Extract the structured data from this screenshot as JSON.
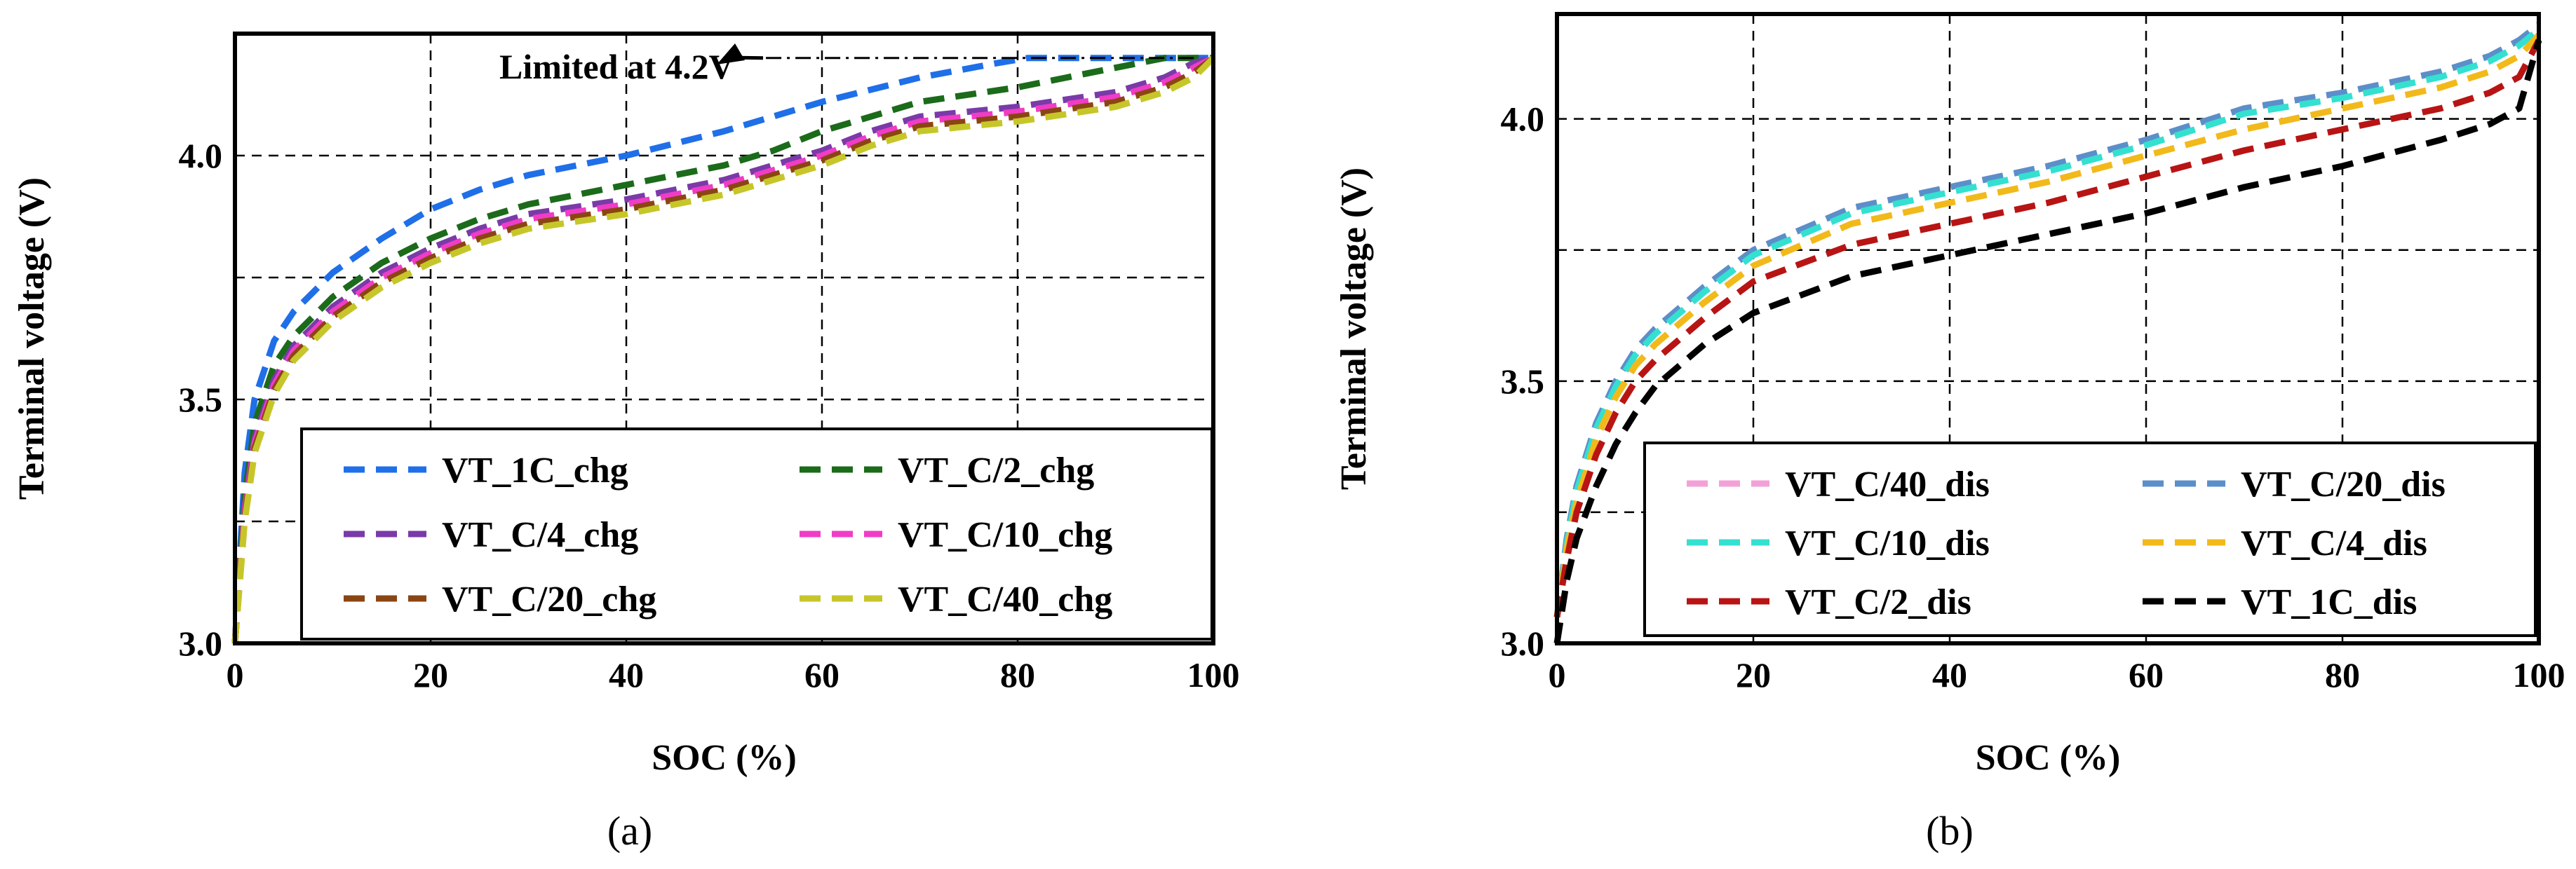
{
  "figure": {
    "captions": [
      "(a)",
      "(b)"
    ]
  },
  "chart_data": [
    {
      "type": "line",
      "panel": "a",
      "title": "",
      "xlabel": "SOC (%)",
      "ylabel": "Terminal voltage (V)",
      "xlim": [
        0,
        100
      ],
      "ylim": [
        3.0,
        4.25
      ],
      "xticks": [
        "0",
        "20",
        "40",
        "60",
        "80",
        "100"
      ],
      "yticks": [
        "3.0",
        "3.5",
        "4.0"
      ],
      "grid": true,
      "legend_position": "bottom-right",
      "legend_columns": 2,
      "annotation": {
        "text": "Limited at 4.2V",
        "x": 98,
        "y": 4.2
      },
      "series": [
        {
          "name": "VT_1C_chg",
          "color": "#1f6fe8",
          "x": [
            0,
            1,
            2,
            4,
            6,
            8,
            10,
            15,
            20,
            25,
            30,
            40,
            50,
            60,
            70,
            78,
            81,
            85,
            90,
            95,
            100
          ],
          "y": [
            3.0,
            3.35,
            3.5,
            3.62,
            3.68,
            3.72,
            3.76,
            3.83,
            3.89,
            3.93,
            3.96,
            4.0,
            4.05,
            4.11,
            4.16,
            4.19,
            4.2,
            4.2,
            4.2,
            4.2,
            4.2
          ]
        },
        {
          "name": "VT_C/2_chg",
          "color": "#1b6b1b",
          "x": [
            0,
            1,
            2,
            4,
            6,
            8,
            10,
            15,
            20,
            25,
            30,
            40,
            50,
            55,
            60,
            65,
            70,
            80,
            85,
            90,
            95,
            100
          ],
          "y": [
            3.0,
            3.3,
            3.45,
            3.57,
            3.63,
            3.67,
            3.71,
            3.78,
            3.83,
            3.87,
            3.9,
            3.94,
            3.98,
            4.01,
            4.05,
            4.08,
            4.11,
            4.14,
            4.16,
            4.18,
            4.2,
            4.2
          ]
        },
        {
          "name": "VT_C/4_chg",
          "color": "#7a3aa8",
          "x": [
            0,
            1,
            2,
            4,
            6,
            8,
            10,
            15,
            20,
            25,
            30,
            40,
            50,
            55,
            60,
            65,
            70,
            80,
            90,
            95,
            98,
            100
          ],
          "y": [
            3.0,
            3.28,
            3.42,
            3.54,
            3.61,
            3.65,
            3.69,
            3.76,
            3.81,
            3.85,
            3.88,
            3.91,
            3.95,
            3.98,
            4.01,
            4.05,
            4.08,
            4.1,
            4.13,
            4.16,
            4.19,
            4.2
          ]
        },
        {
          "name": "VT_C/10_chg",
          "color": "#f03cc6",
          "x": [
            0,
            1,
            2,
            4,
            6,
            8,
            10,
            15,
            20,
            25,
            30,
            40,
            50,
            55,
            60,
            65,
            70,
            80,
            90,
            95,
            98,
            100
          ],
          "y": [
            3.0,
            3.27,
            3.41,
            3.53,
            3.6,
            3.64,
            3.68,
            3.75,
            3.8,
            3.84,
            3.87,
            3.9,
            3.94,
            3.97,
            4.0,
            4.04,
            4.07,
            4.09,
            4.12,
            4.15,
            4.18,
            4.2
          ]
        },
        {
          "name": "VT_C/20_chg",
          "color": "#8b4513",
          "x": [
            0,
            1,
            2,
            4,
            6,
            8,
            10,
            15,
            20,
            25,
            30,
            40,
            50,
            55,
            60,
            65,
            70,
            80,
            90,
            95,
            98,
            100
          ],
          "y": [
            3.0,
            3.26,
            3.4,
            3.52,
            3.59,
            3.63,
            3.67,
            3.74,
            3.79,
            3.83,
            3.86,
            3.89,
            3.93,
            3.96,
            3.99,
            4.03,
            4.06,
            4.08,
            4.11,
            4.14,
            4.17,
            4.2
          ]
        },
        {
          "name": "VT_C/40_chg",
          "color": "#c6c62a",
          "x": [
            0,
            1,
            2,
            4,
            6,
            8,
            10,
            15,
            20,
            25,
            30,
            40,
            50,
            55,
            60,
            65,
            70,
            80,
            90,
            95,
            98,
            100
          ],
          "y": [
            3.0,
            3.25,
            3.39,
            3.51,
            3.58,
            3.62,
            3.66,
            3.73,
            3.78,
            3.82,
            3.85,
            3.88,
            3.92,
            3.95,
            3.98,
            4.02,
            4.05,
            4.07,
            4.1,
            4.13,
            4.16,
            4.2
          ]
        }
      ]
    },
    {
      "type": "line",
      "panel": "b",
      "title": "",
      "xlabel": "SOC (%)",
      "ylabel": "Terminal voltage (V)",
      "xlim": [
        0,
        100
      ],
      "ylim": [
        3.0,
        4.2
      ],
      "xticks": [
        "0",
        "20",
        "40",
        "60",
        "80",
        "100"
      ],
      "yticks": [
        "3.0",
        "3.5",
        "4.0"
      ],
      "grid": true,
      "legend_position": "bottom-right",
      "legend_columns": 2,
      "series": [
        {
          "name": "VT_C/40_dis",
          "color": "#f4a0d8",
          "x": [
            0,
            1,
            2,
            4,
            6,
            8,
            10,
            15,
            20,
            30,
            40,
            50,
            60,
            70,
            80,
            90,
            95,
            98,
            100
          ],
          "y": [
            3.05,
            3.2,
            3.3,
            3.42,
            3.5,
            3.56,
            3.6,
            3.68,
            3.75,
            3.83,
            3.87,
            3.91,
            3.96,
            4.02,
            4.05,
            4.09,
            4.12,
            4.15,
            4.18
          ]
        },
        {
          "name": "VT_C/20_dis",
          "color": "#5b8fc9",
          "x": [
            0,
            1,
            2,
            4,
            6,
            8,
            10,
            15,
            20,
            30,
            40,
            50,
            60,
            70,
            80,
            90,
            95,
            98,
            100
          ],
          "y": [
            3.05,
            3.2,
            3.3,
            3.42,
            3.5,
            3.56,
            3.6,
            3.68,
            3.75,
            3.83,
            3.87,
            3.91,
            3.96,
            4.02,
            4.05,
            4.09,
            4.12,
            4.15,
            4.18
          ]
        },
        {
          "name": "VT_C/10_dis",
          "color": "#34e0d0",
          "x": [
            0,
            1,
            2,
            4,
            6,
            8,
            10,
            15,
            20,
            30,
            40,
            50,
            60,
            70,
            80,
            90,
            95,
            98,
            100
          ],
          "y": [
            3.05,
            3.19,
            3.29,
            3.41,
            3.49,
            3.55,
            3.59,
            3.67,
            3.74,
            3.82,
            3.86,
            3.9,
            3.95,
            4.01,
            4.04,
            4.08,
            4.11,
            4.14,
            4.17
          ]
        },
        {
          "name": "VT_C/4_dis",
          "color": "#f2b91a",
          "x": [
            0,
            1,
            2,
            4,
            6,
            8,
            10,
            15,
            20,
            30,
            40,
            50,
            60,
            70,
            80,
            90,
            95,
            98,
            100
          ],
          "y": [
            3.05,
            3.18,
            3.27,
            3.39,
            3.47,
            3.53,
            3.57,
            3.65,
            3.72,
            3.8,
            3.84,
            3.88,
            3.93,
            3.98,
            4.02,
            4.06,
            4.09,
            4.12,
            4.16
          ]
        },
        {
          "name": "VT_C/2_dis",
          "color": "#b81414",
          "x": [
            0,
            1,
            2,
            4,
            6,
            8,
            10,
            15,
            20,
            30,
            40,
            50,
            60,
            70,
            80,
            90,
            95,
            98,
            100
          ],
          "y": [
            3.05,
            3.16,
            3.25,
            3.36,
            3.44,
            3.5,
            3.54,
            3.62,
            3.69,
            3.76,
            3.8,
            3.84,
            3.89,
            3.94,
            3.98,
            4.02,
            4.05,
            4.08,
            4.15
          ]
        },
        {
          "name": "VT_1C_dis",
          "color": "#000000",
          "x": [
            0,
            1,
            2,
            4,
            6,
            8,
            10,
            15,
            20,
            30,
            40,
            50,
            60,
            70,
            80,
            90,
            95,
            98,
            100
          ],
          "y": [
            3.0,
            3.12,
            3.2,
            3.3,
            3.38,
            3.44,
            3.49,
            3.57,
            3.63,
            3.7,
            3.74,
            3.78,
            3.82,
            3.87,
            3.91,
            3.96,
            3.99,
            4.02,
            4.15
          ]
        }
      ]
    }
  ]
}
